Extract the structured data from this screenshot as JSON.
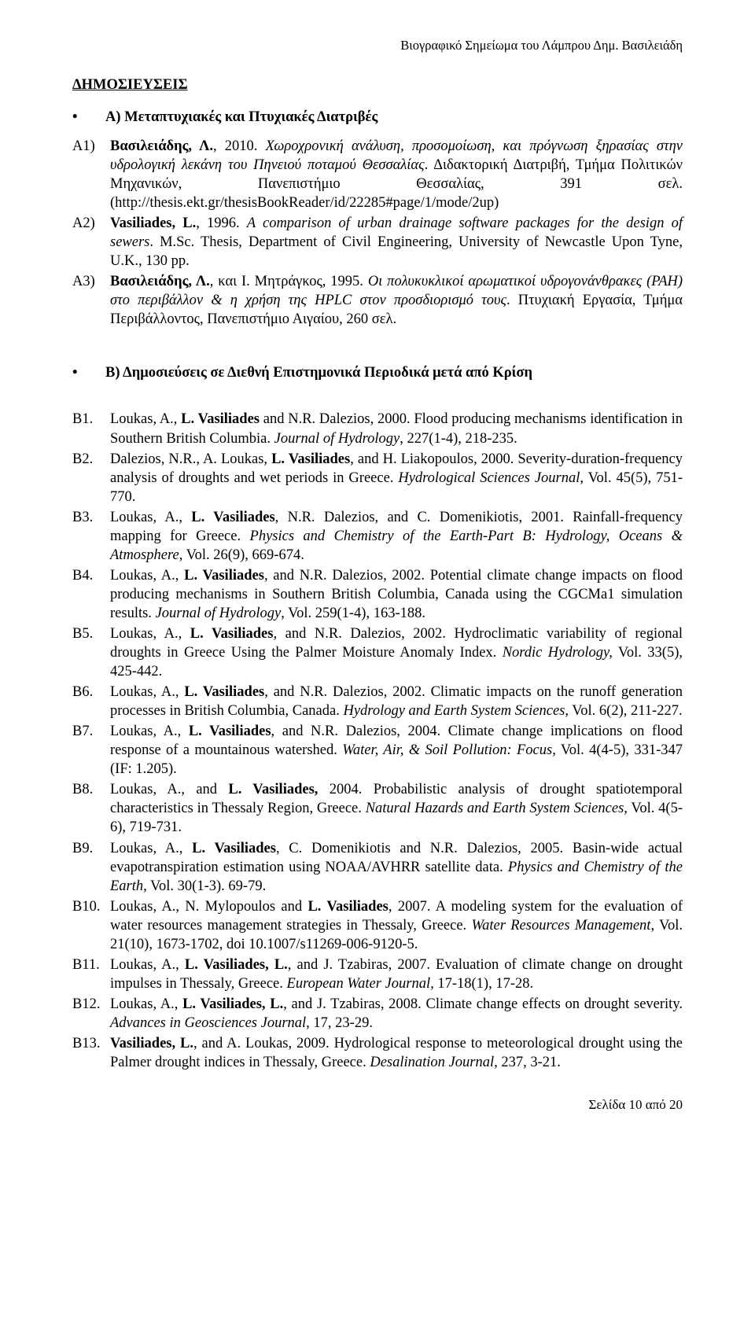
{
  "page": {
    "running_header": "Βιογραφικό Σημείωμα του Λάμπρου Δημ. Βασιλειάδη",
    "footer": "Σελίδα 10 από 20"
  },
  "section_a": {
    "heading": "ΔΗΜΟΣΙΕΥΣΕΙΣ",
    "bullet": "•",
    "subtitle": "Α) Μεταπτυχιακές και Πτυχιακές Διατριβές",
    "entries": [
      {
        "key": "A1)",
        "author_bold": "Βασιλειάδης, Λ.",
        "plain1": ", 2010. ",
        "italic1": "Χωροχρονική ανάλυση, προσομοίωση, και πρόγνωση ξηρασίας στην υδρολογική λεκάνη του Πηνειού ποταμού Θεσσαλίας",
        "plain2": ". Διδακτορική Διατριβή, Τμήμα Πολιτικών Μηχανικών, Πανεπιστήμιο Θεσσαλίας, 391 σελ. (http://thesis.ekt.gr/thesisBookReader/id/22285#page/1/mode/2up)"
      },
      {
        "key": "A2)",
        "author_bold": "Vasiliades, L.",
        "plain1": ", 1996. ",
        "italic1": "A comparison of urban drainage software packages for the design of sewers",
        "plain2": ". M.Sc. Thesis, Department of Civil Engineering, University of Newcastle Upon Tyne, U.K., 130 pp."
      },
      {
        "key": "A3)",
        "author_bold": "Βασιλειάδης, Λ.",
        "plain1": ", και Ι. Μητράγκος, 1995. ",
        "italic1": "Οι πολυκυκλικοί αρωματικοί υδρογονάνθρακες (PAH) στο περιβάλλον & η χρήση της HPLC στον προσδιορισμό τους",
        "plain2": ". Πτυχιακή Εργασία, Τμήμα Περιβάλλοντος, Πανεπιστήμιο Αιγαίου, 260 σελ."
      }
    ]
  },
  "section_b": {
    "bullet": "•",
    "subtitle": "Β) Δημοσιεύσεις σε Διεθνή Επιστημονικά Περιοδικά μετά από Κρίση",
    "entries": [
      {
        "key": "B1.",
        "pre": "Loukas, A., ",
        "bold": "L. Vasiliades",
        "post1": " and N.R. Dalezios, 2000. Flood producing mechanisms identification in Southern British Columbia. ",
        "italic": "Journal of Hydrology",
        "post2": ", 227(1-4), 218-235."
      },
      {
        "key": "B2.",
        "pre": "Dalezios, N.R., A. Loukas, ",
        "bold": "L. Vasiliades",
        "post1": ", and H. Liakopoulos, 2000. Severity-duration-frequency analysis of droughts and wet periods in Greece. ",
        "italic": "Hydrological Sciences Journal",
        "post2": ", Vol. 45(5), 751-770."
      },
      {
        "key": "B3.",
        "pre": "Loukas, A., ",
        "bold": "L. Vasiliades",
        "post1": ", N.R. Dalezios, and C. Domenikiotis, 2001. Rainfall-frequency mapping for Greece. ",
        "italic": "Physics and Chemistry of the Earth-Part B: Hydrology, Oceans & Atmosphere",
        "post2": ", Vol. 26(9), 669-674."
      },
      {
        "key": "B4.",
        "pre": "Loukas, A., ",
        "bold": "L. Vasiliades",
        "post1": ", and N.R. Dalezios, 2002. Potential climate change impacts on flood producing mechanisms in Southern British Columbia, Canada using the CGCMa1 simulation results. ",
        "italic": "Journal of Hydrology",
        "post2": ", Vol. 259(1-4), 163-188."
      },
      {
        "key": "B5.",
        "pre": "Loukas, A., ",
        "bold": "L. Vasiliades",
        "post1": ", and N.R. Dalezios, 2002. Hydroclimatic variability of regional droughts in Greece Using the Palmer Moisture Anomaly Index. ",
        "italic": "Nordic Hydrology,",
        "post2": " Vol. 33(5), 425-442."
      },
      {
        "key": "B6.",
        "pre": "Loukas, A., ",
        "bold": "L. Vasiliades",
        "post1": ", and N.R. Dalezios, 2002. Climatic impacts on the runoff generation processes in British Columbia, Canada. ",
        "italic": "Hydrology and Earth System Sciences",
        "post2": ", Vol. 6(2), 211-227."
      },
      {
        "key": "B7.",
        "pre": "Loukas, A., ",
        "bold": "L. Vasiliades",
        "post1": ", and N.R. Dalezios, 2004. Climate change implications on flood response of a mountainous watershed. ",
        "italic": "Water, Air, & Soil Pollution: Focus",
        "post2": ", Vol. 4(4-5), 331-347 (IF: 1.205)."
      },
      {
        "key": "B8.",
        "pre": "Loukas, A., and ",
        "bold": "L. Vasiliades,",
        "post1": " 2004. Probabilistic analysis of drought spatiotemporal characteristics in Thessaly Region, Greece. ",
        "italic": "Natural Hazards and Earth System Sciences",
        "post2": ", Vol. 4(5-6), 719-731."
      },
      {
        "key": "B9.",
        "pre": "Loukas, A., ",
        "bold": "L. Vasiliades",
        "post1": ", C. Domenikiotis and N.R. Dalezios, 2005. Basin-wide actual evapotranspiration estimation using NOAA/AVHRR satellite data. ",
        "italic": "Physics and Chemistry of the Earth,",
        "post2": " Vol. 30(1-3). 69-79."
      },
      {
        "key": "B10.",
        "pre": "Loukas, A., N. Mylopoulos and ",
        "bold": "L. Vasiliades",
        "post1": ", 2007. A modeling system for the evaluation of water resources management strategies in Thessaly, Greece. ",
        "italic": "Water Resources Management",
        "post2": ", Vol. 21(10), 1673-1702, doi 10.1007/s11269-006-9120-5."
      },
      {
        "key": "B11.",
        "pre": "Loukas, A., ",
        "bold": "L. Vasiliades, L.",
        "post1": ", and J. Tzabiras, 2007. Evaluation of climate change on drought impulses in Thessaly, Greece. ",
        "italic": "European Water Journal,",
        "post2": " 17-18(1), 17-28."
      },
      {
        "key": "B12.",
        "pre": "Loukas, A., ",
        "bold": "L. Vasiliades, L.",
        "post1": ", and J. Tzabiras, 2008. Climate change effects on drought severity. ",
        "italic": "Advances in Geosciences Journal",
        "post2": ", 17, 23-29."
      },
      {
        "key": "B13.",
        "pre": "",
        "bold": "Vasiliades, L.",
        "post1": ", and A. Loukas, 2009. Hydrological response to meteorological drought using the Palmer drought indices in Thessaly, Greece. ",
        "italic": "Desalination Journal,",
        "post2": " 237, 3-21."
      }
    ]
  }
}
